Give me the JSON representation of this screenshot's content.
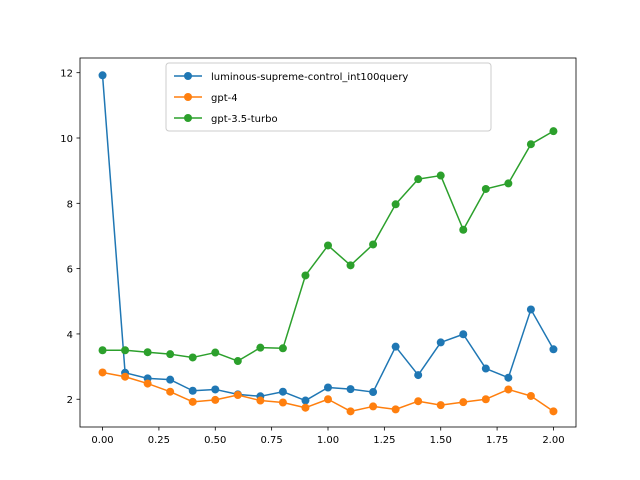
{
  "chart_data": {
    "type": "line",
    "title": "",
    "xlabel": "",
    "ylabel": "",
    "xlim": [
      -0.1,
      2.1
    ],
    "ylim": [
      1.15,
      12.45
    ],
    "x": [
      0.0,
      0.1,
      0.2,
      0.3,
      0.4,
      0.5,
      0.6,
      0.7,
      0.8,
      0.9,
      1.0,
      1.1,
      1.2,
      1.3,
      1.4,
      1.5,
      1.6,
      1.7,
      1.8,
      1.9,
      2.0
    ],
    "xticks": [
      0.0,
      0.25,
      0.5,
      0.75,
      1.0,
      1.25,
      1.5,
      1.75,
      2.0
    ],
    "xtick_labels": [
      "0.00",
      "0.25",
      "0.50",
      "0.75",
      "1.00",
      "1.25",
      "1.50",
      "1.75",
      "2.00"
    ],
    "yticks": [
      2,
      4,
      6,
      8,
      10,
      12
    ],
    "ytick_labels": [
      "2",
      "4",
      "6",
      "8",
      "10",
      "12"
    ],
    "grid": false,
    "legend_position": "upper-center",
    "series": [
      {
        "name": "luminous-supreme-control_int100query",
        "color": "#1f77b4",
        "values": [
          11.92,
          2.81,
          2.64,
          2.6,
          2.26,
          2.3,
          2.15,
          2.09,
          2.23,
          1.96,
          2.36,
          2.31,
          2.22,
          3.61,
          2.74,
          3.74,
          3.99,
          2.94,
          2.66,
          4.75,
          3.53
        ]
      },
      {
        "name": "gpt-4",
        "color": "#ff7f0e",
        "values": [
          2.82,
          2.69,
          2.48,
          2.23,
          1.92,
          1.98,
          2.13,
          1.96,
          1.9,
          1.74,
          2.0,
          1.63,
          1.78,
          1.69,
          1.94,
          1.82,
          1.91,
          2.0,
          2.3,
          2.1,
          1.63
        ]
      },
      {
        "name": "gpt-3.5-turbo",
        "color": "#2ca02c",
        "values": [
          3.5,
          3.5,
          3.44,
          3.38,
          3.28,
          3.43,
          3.17,
          3.58,
          3.56,
          5.79,
          6.71,
          6.1,
          6.74,
          7.97,
          8.74,
          8.85,
          7.19,
          8.44,
          8.61,
          9.81,
          10.21
        ]
      }
    ]
  }
}
